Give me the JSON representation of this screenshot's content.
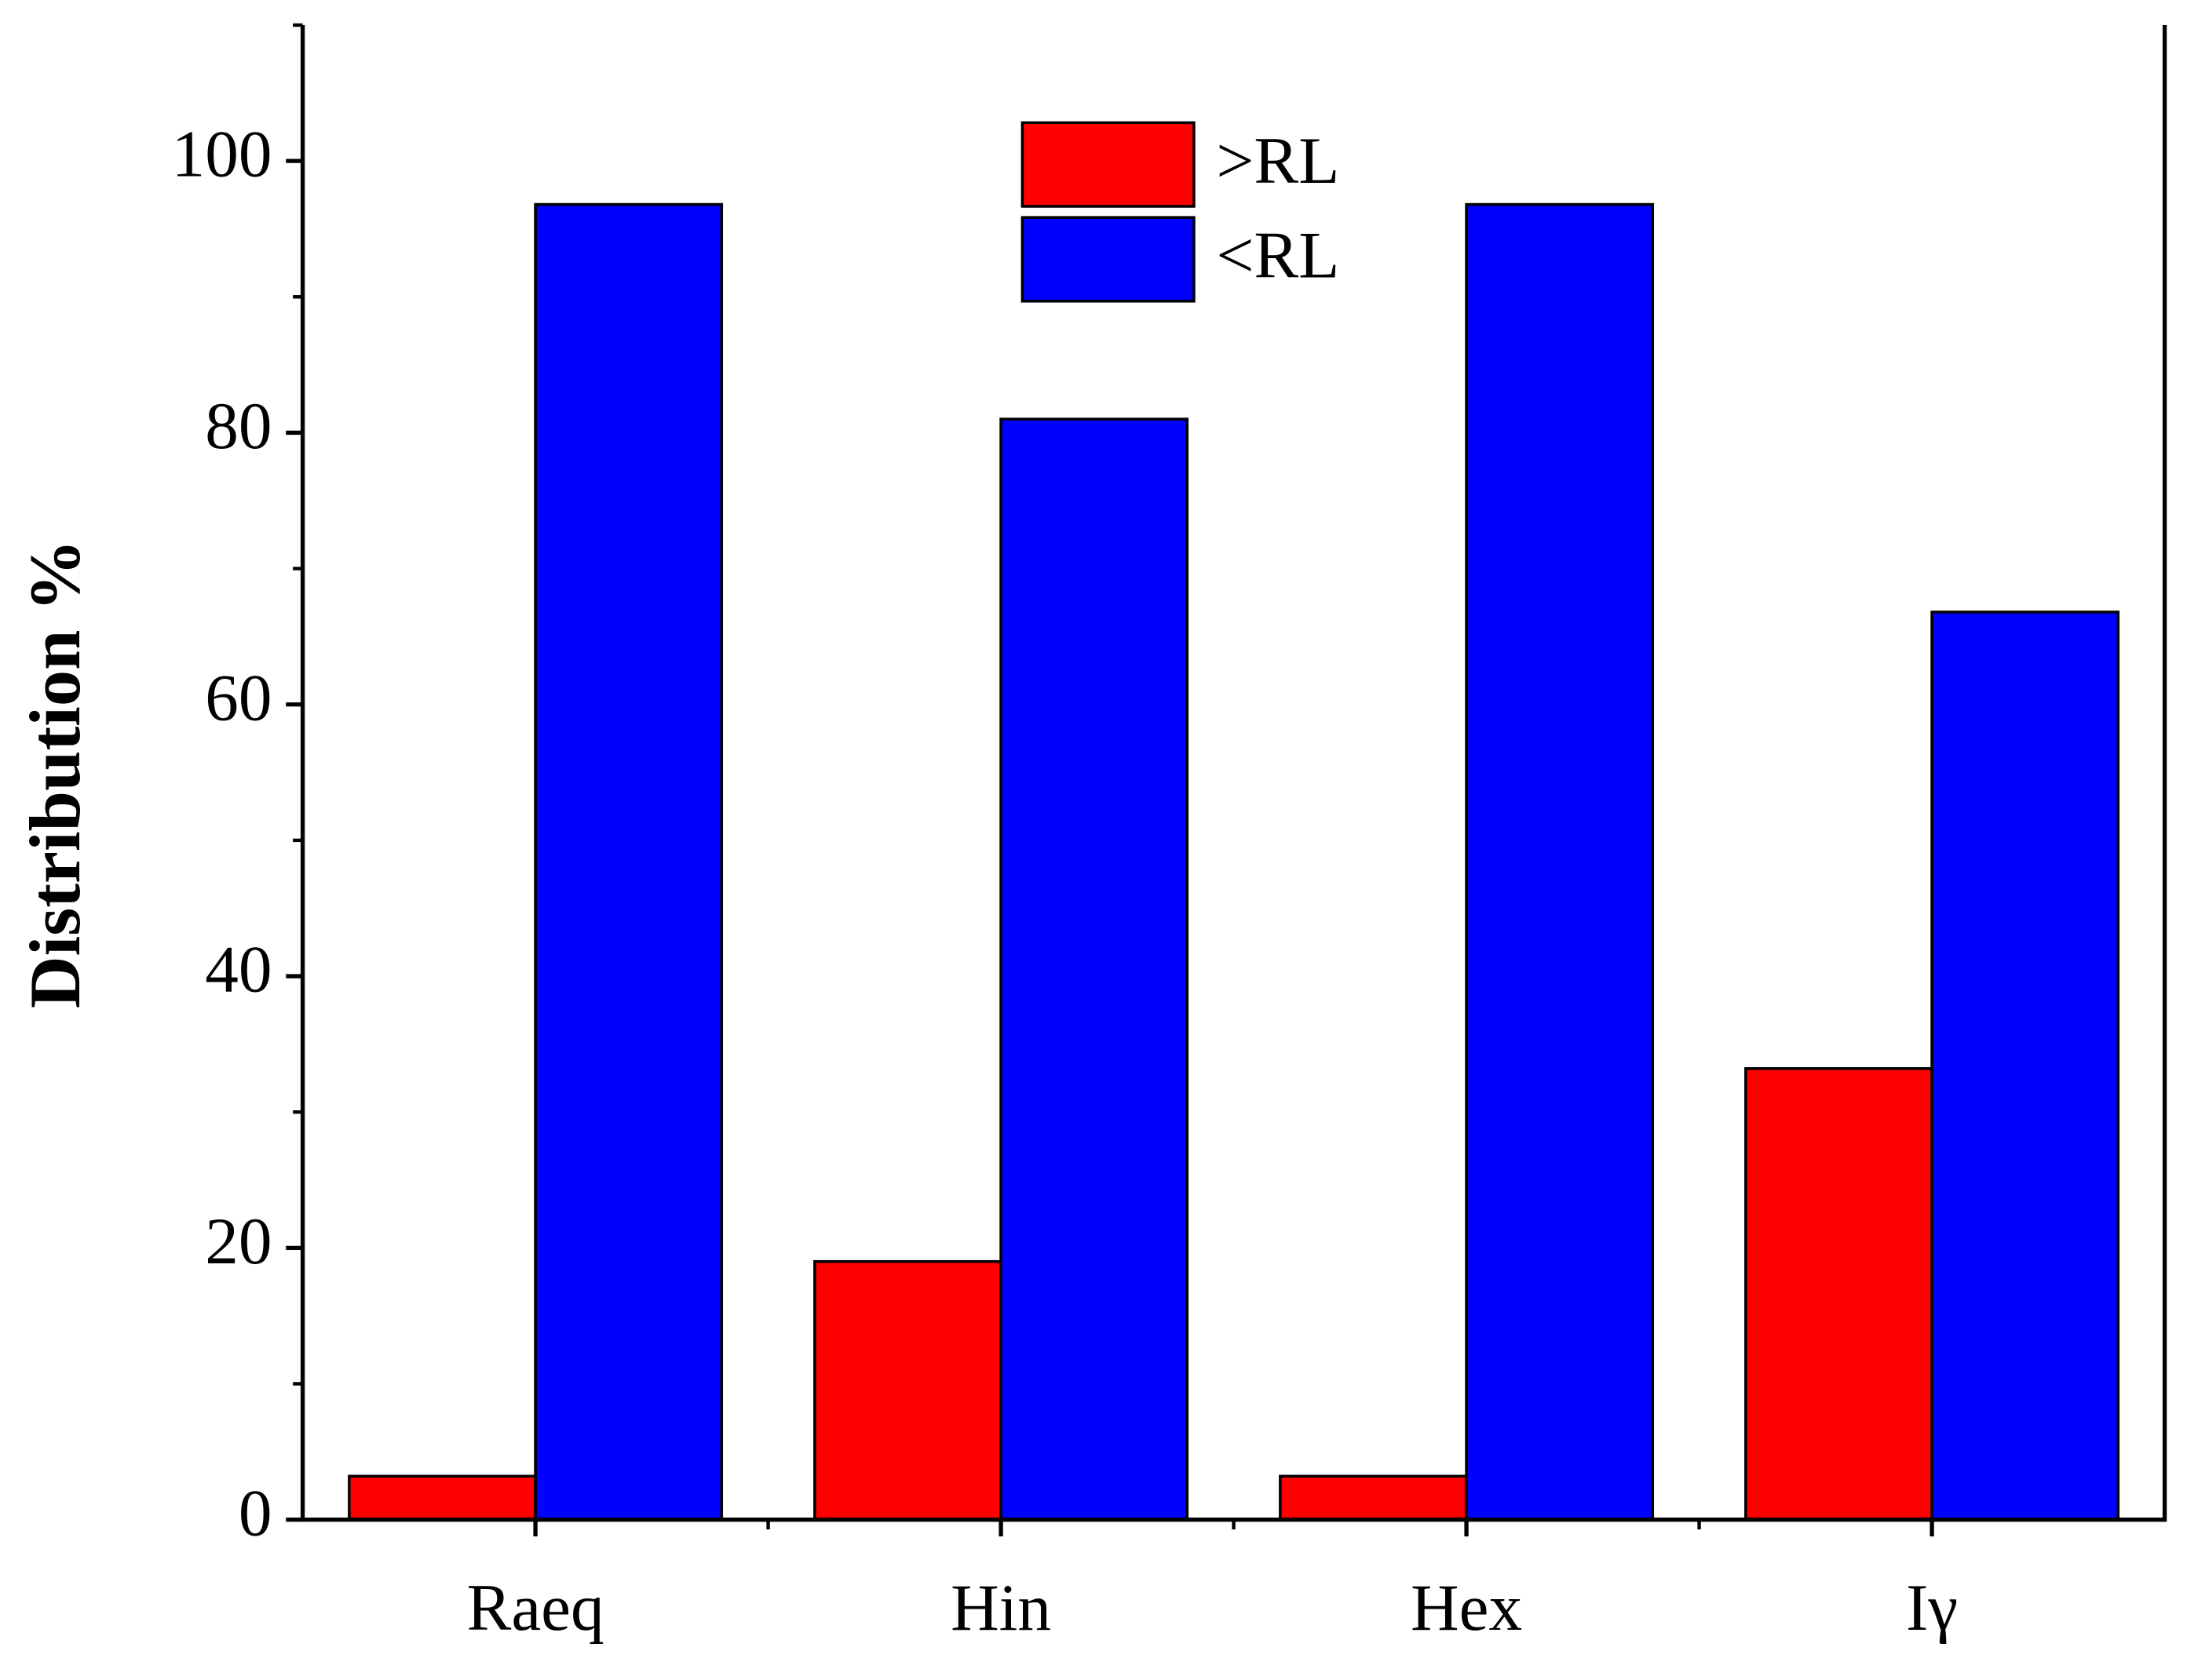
{
  "chart_data": {
    "type": "bar",
    "y_label": "Distribution %",
    "categories": [
      "Raeq",
      "Hin",
      "Hex",
      "Iγ"
    ],
    "series": [
      {
        "name": ">RL",
        "color": "#ff0000",
        "values": [
          3.2,
          19,
          3.2,
          33.2
        ]
      },
      {
        "name": "<RL",
        "color": "#0000ff",
        "values": [
          96.8,
          81,
          96.8,
          66.8
        ]
      }
    ],
    "ylim": [
      0,
      110
    ],
    "yticks": [
      0,
      20,
      40,
      60,
      80,
      100
    ],
    "legend": "top-center"
  }
}
